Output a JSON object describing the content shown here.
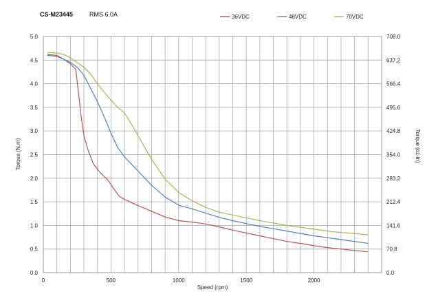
{
  "header": {
    "model": "CS-M23445",
    "rms": "RMS 6.0A"
  },
  "chart_data": {
    "type": "line",
    "xlabel": "Speed (rpm)",
    "ylabel": "Torque (N.m)",
    "y2label": "Torque (oz-in)",
    "xlim": [
      0,
      2500
    ],
    "ylim": [
      0,
      5.0
    ],
    "y2lim": [
      0,
      708.0
    ],
    "xticks": [
      0,
      500,
      1000,
      1500,
      2000
    ],
    "yticks": [
      "0.0",
      "0.5",
      "1.0",
      "1.5",
      "2.0",
      "2.5",
      "3.0",
      "3.5",
      "4.0",
      "4.5",
      "5.0"
    ],
    "y2ticks": [
      "0.0",
      "70.8",
      "141.6",
      "212.4",
      "283.2",
      "354.0",
      "424.8",
      "495.6",
      "566.4",
      "637.2",
      "708.0"
    ],
    "x_minor_gridline_step": 100,
    "grid": true,
    "legend_position": "top",
    "series": [
      {
        "name": "36VDC",
        "color": "#c0504d",
        "x": [
          30,
          100,
          150,
          200,
          240,
          260,
          280,
          300,
          330,
          370,
          420,
          480,
          520,
          560,
          600,
          700,
          800,
          900,
          1000,
          1100,
          1200,
          1300,
          1400,
          1500,
          1600,
          1700,
          1800,
          1900,
          2000,
          2100,
          2200,
          2300,
          2400
        ],
        "y": [
          4.62,
          4.6,
          4.52,
          4.42,
          4.3,
          3.8,
          3.3,
          2.9,
          2.6,
          2.3,
          2.12,
          1.95,
          1.78,
          1.62,
          1.55,
          1.42,
          1.3,
          1.18,
          1.1,
          1.07,
          1.03,
          0.97,
          0.9,
          0.84,
          0.78,
          0.72,
          0.66,
          0.62,
          0.57,
          0.53,
          0.5,
          0.47,
          0.44
        ]
      },
      {
        "name": "48VDC",
        "color": "#4f81bd",
        "x": [
          30,
          100,
          150,
          200,
          250,
          300,
          350,
          400,
          450,
          500,
          550,
          600,
          700,
          800,
          900,
          1000,
          1100,
          1200,
          1300,
          1400,
          1500,
          1600,
          1700,
          1800,
          1900,
          2000,
          2100,
          2200,
          2300,
          2400
        ],
        "y": [
          4.6,
          4.58,
          4.52,
          4.45,
          4.35,
          4.18,
          3.9,
          3.62,
          3.3,
          2.95,
          2.65,
          2.45,
          2.15,
          1.85,
          1.6,
          1.43,
          1.35,
          1.26,
          1.17,
          1.1,
          1.04,
          0.98,
          0.93,
          0.88,
          0.83,
          0.78,
          0.74,
          0.7,
          0.66,
          0.62
        ]
      },
      {
        "name": "70VDC",
        "color": "#9bbb59",
        "x": [
          30,
          100,
          150,
          200,
          250,
          300,
          350,
          400,
          450,
          500,
          550,
          600,
          650,
          700,
          800,
          900,
          1000,
          1100,
          1200,
          1300,
          1400,
          1500,
          1600,
          1700,
          1800,
          1900,
          2000,
          2100,
          2200,
          2300,
          2400
        ],
        "y": [
          4.66,
          4.65,
          4.62,
          4.55,
          4.45,
          4.35,
          4.2,
          4.0,
          3.82,
          3.65,
          3.5,
          3.38,
          3.15,
          2.9,
          2.4,
          1.98,
          1.7,
          1.52,
          1.38,
          1.28,
          1.22,
          1.16,
          1.1,
          1.05,
          1.0,
          0.96,
          0.92,
          0.88,
          0.85,
          0.83,
          0.8
        ]
      }
    ]
  }
}
